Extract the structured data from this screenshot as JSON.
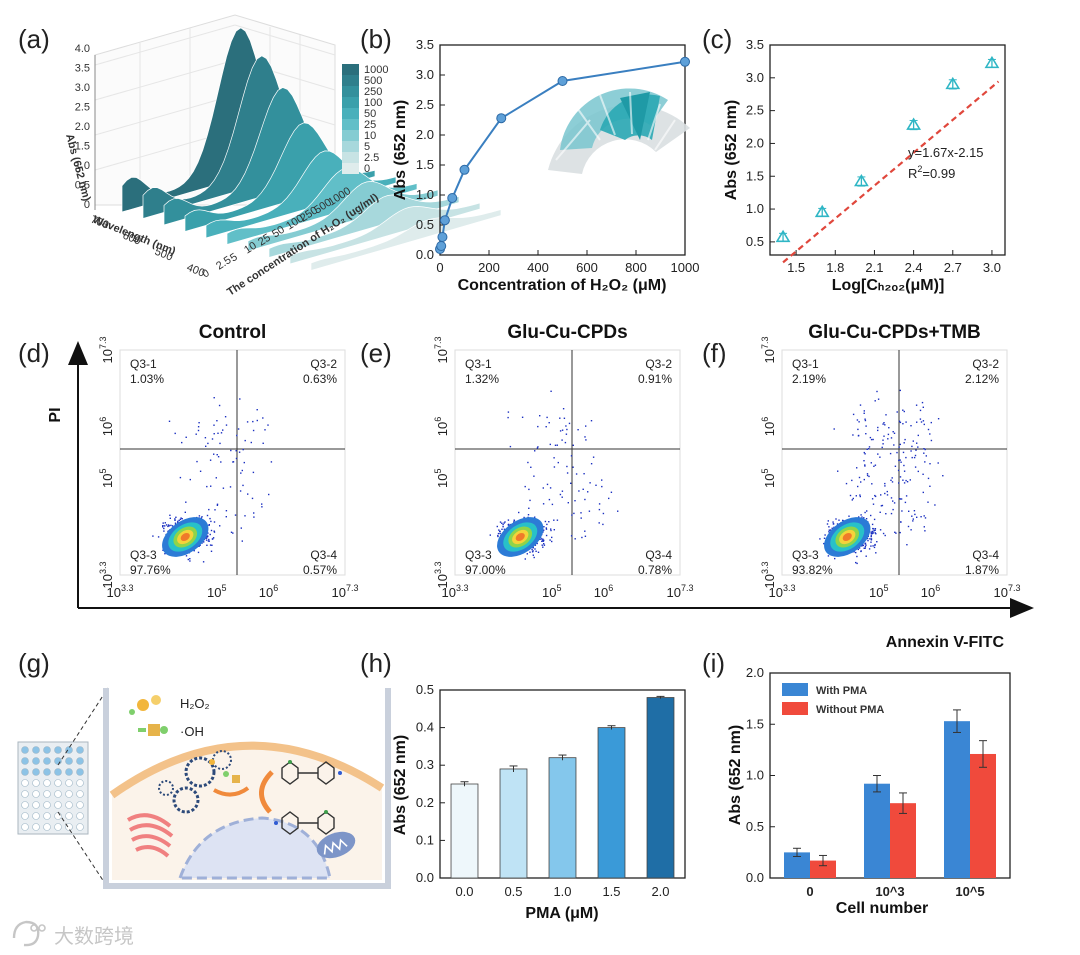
{
  "panels": {
    "a": "(a)",
    "b": "(b)",
    "c": "(c)",
    "d": "(d)",
    "e": "(e)",
    "f": "(f)",
    "g": "(g)",
    "h": "(h)",
    "i": "(i)"
  },
  "colors": {
    "teal": "#2e8b99",
    "blue_line": "#3a7fc0",
    "red_dash": "#e0473c",
    "marker": "#2fb6c5",
    "with_pma": "#3a86d4",
    "without_pma": "#f04a3c"
  },
  "chart_data": [
    {
      "id": "a",
      "type": "area",
      "zlabel": "Abs (652 nm)",
      "xlabel": "Wavelength (nm)",
      "ylabel": "The concentration of H₂O₂ (ug/ml)",
      "z_ticks": [
        "0",
        "0.5",
        "1.0",
        "1.5",
        "2.0",
        "2.5",
        "3.0",
        "3.5",
        "4.0"
      ],
      "wavelength_ticks": [
        "400",
        "500",
        "600",
        "700"
      ],
      "conc_ticks": [
        "0",
        "2.5",
        "5",
        "10",
        "25",
        "50",
        "100",
        "250",
        "500",
        "1000"
      ],
      "legend": [
        {
          "label": "1000",
          "color": "#2b6f7c"
        },
        {
          "label": "500",
          "color": "#2f7f8c"
        },
        {
          "label": "250",
          "color": "#33909c"
        },
        {
          "label": "100",
          "color": "#3aa0ab"
        },
        {
          "label": "50",
          "color": "#49b0bb"
        },
        {
          "label": "25",
          "color": "#61bfc8"
        },
        {
          "label": "10",
          "color": "#85ccd2"
        },
        {
          "label": "5",
          "color": "#a7d8dc"
        },
        {
          "label": "2.5",
          "color": "#c7e3e4"
        },
        {
          "label": "0",
          "color": "#dfecec"
        }
      ],
      "peak_abs": [
        4.0,
        3.4,
        2.7,
        1.9,
        1.3,
        1.0,
        0.8,
        0.6,
        0.45,
        0.3
      ]
    },
    {
      "id": "b",
      "type": "line",
      "xlabel": "Concentration of H₂O₂ (μM)",
      "ylabel": "Abs (652 nm)",
      "xlim": [
        0,
        1000
      ],
      "ylim": [
        0,
        3.5
      ],
      "x_ticks": [
        "0",
        "200",
        "400",
        "600",
        "800",
        "1000"
      ],
      "y_ticks": [
        "0.0",
        "0.5",
        "1.0",
        "1.5",
        "2.0",
        "2.5",
        "3.0",
        "3.5"
      ],
      "x": [
        0,
        5,
        10,
        20,
        50,
        100,
        250,
        500,
        1000
      ],
      "y": [
        0.1,
        0.15,
        0.3,
        0.58,
        0.95,
        1.42,
        2.28,
        2.9,
        3.22
      ]
    },
    {
      "id": "c",
      "type": "scatter",
      "xlabel": "Log[Cₕ₂ₒ₂(μM)]",
      "ylabel": "Abs (652 nm)",
      "xlim": [
        1.3,
        3.1
      ],
      "ylim": [
        0.3,
        3.5
      ],
      "x_ticks": [
        "1.5",
        "1.8",
        "2.1",
        "2.4",
        "2.7",
        "3.0"
      ],
      "y_ticks": [
        "0.5",
        "1.0",
        "1.5",
        "2.0",
        "2.5",
        "3.0",
        "3.5"
      ],
      "x": [
        1.4,
        1.7,
        2.0,
        2.4,
        2.7,
        3.0
      ],
      "y": [
        0.57,
        0.95,
        1.42,
        2.28,
        2.9,
        3.22
      ],
      "err": [
        0.06,
        0.06,
        0.07,
        0.07,
        0.07,
        0.06
      ],
      "equation": "y=1.67x-2.15",
      "r2_prefix": "R",
      "r2_sup": "2",
      "r2_suffix": "=0.99",
      "fit": {
        "slope": 1.67,
        "intercept": -2.15,
        "x_from": 1.4,
        "x_to": 3.05
      }
    },
    {
      "id": "h",
      "type": "bar",
      "xlabel": "PMA (μM)",
      "ylabel": "Abs (652 nm)",
      "ylim": [
        0,
        0.5
      ],
      "categories": [
        "0.0",
        "0.5",
        "1.0",
        "1.5",
        "2.0"
      ],
      "values": [
        0.25,
        0.29,
        0.32,
        0.4,
        0.48
      ],
      "errors": [
        0.006,
        0.008,
        0.007,
        0.005,
        0.003
      ],
      "y_ticks": [
        "0.0",
        "0.1",
        "0.2",
        "0.3",
        "0.4",
        "0.5"
      ],
      "colors": [
        "#eef7fb",
        "#bfe3f5",
        "#84c7ec",
        "#3a9ad8",
        "#1f6ea6"
      ]
    },
    {
      "id": "i",
      "type": "bar",
      "xlabel": "Cell number",
      "ylabel": "Abs (652 nm)",
      "ylim": [
        0,
        2.0
      ],
      "categories": [
        "0",
        "10^3",
        "10^5"
      ],
      "y_ticks": [
        "0.0",
        "0.5",
        "1.0",
        "1.5",
        "2.0"
      ],
      "series": [
        {
          "name": "With PMA",
          "values": [
            0.25,
            0.92,
            1.53
          ],
          "errors": [
            0.04,
            0.08,
            0.11
          ],
          "color": "#3a86d4"
        },
        {
          "name": "Without PMA",
          "values": [
            0.17,
            0.73,
            1.21
          ],
          "errors": [
            0.05,
            0.1,
            0.13
          ],
          "color": "#f04a3c"
        }
      ]
    }
  ],
  "flow": {
    "ylabel": "PI",
    "xlabel": "Annexin V-FITC",
    "tick_base": "10",
    "tick_exps": [
      "3.3",
      "5",
      "6",
      "7.3"
    ],
    "plots": [
      {
        "id": "d",
        "title": "Control",
        "q1": "Q3-1",
        "q1v": "1.03%",
        "q2": "Q3-2",
        "q2v": "0.63%",
        "q3": "Q3-3",
        "q3v": "97.76%",
        "q4": "Q3-4",
        "q4v": "0.57%"
      },
      {
        "id": "e",
        "title": "Glu-Cu-CPDs",
        "q1": "Q3-1",
        "q1v": "1.32%",
        "q2": "Q3-2",
        "q2v": "0.91%",
        "q3": "Q3-3",
        "q3v": "97.00%",
        "q4": "Q3-4",
        "q4v": "0.78%"
      },
      {
        "id": "f",
        "title": "Glu-Cu-CPDs+TMB",
        "q1": "Q3-1",
        "q1v": "2.19%",
        "q2": "Q3-2",
        "q2v": "2.12%",
        "q3": "Q3-3",
        "q3v": "93.82%",
        "q4": "Q3-4",
        "q4v": "1.87%"
      }
    ]
  },
  "schematic": {
    "h2o2": "H₂O₂",
    "oh": "·OH"
  },
  "watermark": "大数跨境"
}
